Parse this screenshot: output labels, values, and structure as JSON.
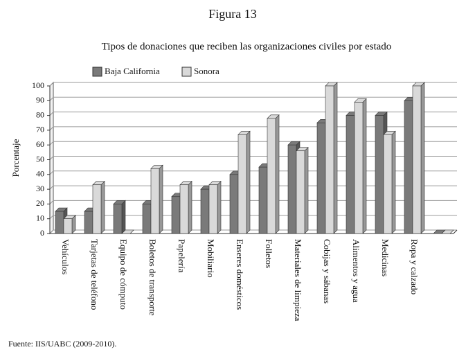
{
  "chart_data": {
    "type": "bar3d",
    "heading": "Figura 13",
    "title": "Tipos de donaciones que reciben las organizaciones civiles por estado",
    "y_label": "Porcentaje",
    "source": "Fuente: IIS/UABC (2009-2010).",
    "categories": [
      "Vehículos",
      "Tarjetas de teléfono",
      "Equipo de cómputo",
      "Boletos de transporte",
      "Papelería",
      "Mobiliario",
      "Enseres domésticos",
      "Folletos",
      "Materiales de limpieza",
      "Cobijas y sábanas",
      "Alimentos y agua",
      "Medicinas",
      "Ropa y calzado",
      null
    ],
    "series": [
      {
        "name": "Baja California",
        "color": "#7a7a7a",
        "values": [
          15,
          15,
          20,
          20,
          25,
          30,
          40,
          45,
          60,
          75,
          80,
          80,
          90,
          0
        ]
      },
      {
        "name": "Sonora",
        "color": "#d9d9d9",
        "values": [
          10,
          33,
          0,
          44,
          33,
          33,
          67,
          78,
          56,
          100,
          89,
          67,
          100,
          0
        ]
      }
    ],
    "ylim": [
      0,
      100
    ],
    "yticks": [
      0,
      10,
      20,
      30,
      40,
      50,
      60,
      70,
      80,
      90,
      100
    ],
    "grid": true
  }
}
